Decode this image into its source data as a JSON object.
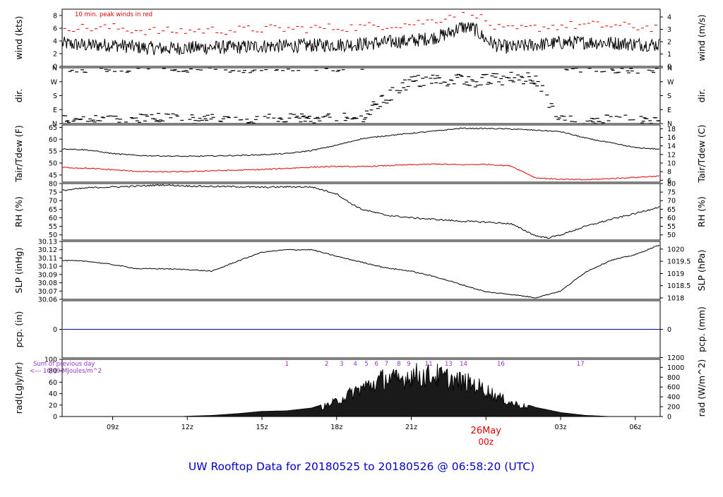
{
  "title": "UW Rooftop Data for 20180525  to  20180526 @ 06:58:20  (UTC)",
  "colors": {
    "title": "#0000cc",
    "date_marker": "#e00000",
    "peak_winds": "#e00000",
    "dewpoint": "#e00000",
    "precip_line": "#0000cc",
    "solar_annotation": "#9933cc",
    "trace": "#000000"
  },
  "time_axis": {
    "start_hour": 6.97,
    "end_hour": 31.0,
    "ticks": [
      {
        "hour": 9,
        "label": "09z"
      },
      {
        "hour": 12,
        "label": "12z"
      },
      {
        "hour": 15,
        "label": "15z"
      },
      {
        "hour": 18,
        "label": "18z"
      },
      {
        "hour": 21,
        "label": "21z"
      },
      {
        "hour": 27,
        "label": "03z"
      },
      {
        "hour": 30,
        "label": "06z"
      }
    ],
    "date_marker": {
      "hour": 24,
      "label_top": "26May",
      "label_bottom": "00z"
    }
  },
  "panels": {
    "wind": {
      "ylabel": "wind (kts)",
      "ylabel_right": "wind (m/s)",
      "ylim": [
        0,
        9
      ],
      "left_ticks": [
        {
          "v": 0,
          "l": "0"
        },
        {
          "v": 2,
          "l": "2"
        },
        {
          "v": 4,
          "l": "4"
        },
        {
          "v": 6,
          "l": "6"
        },
        {
          "v": 8,
          "l": "8"
        }
      ],
      "right_ticks": [
        {
          "v": 0,
          "l": "0"
        },
        {
          "v": 1.944,
          "l": "1"
        },
        {
          "v": 3.888,
          "l": "2"
        },
        {
          "v": 5.832,
          "l": "3"
        },
        {
          "v": 7.776,
          "l": "4"
        }
      ],
      "annotation": "10 min. peak winds in red"
    },
    "dir": {
      "ylabel": "dir.",
      "ylabel_right": "dir.",
      "ylim": [
        0,
        360
      ],
      "left_ticks": [
        {
          "v": 0,
          "l": "N"
        },
        {
          "v": 90,
          "l": "E"
        },
        {
          "v": 180,
          "l": "S"
        },
        {
          "v": 270,
          "l": "W"
        },
        {
          "v": 360,
          "l": "N"
        }
      ],
      "right_ticks": [
        {
          "v": 0,
          "l": "N"
        },
        {
          "v": 90,
          "l": "E"
        },
        {
          "v": 180,
          "l": "S"
        },
        {
          "v": 270,
          "l": "W"
        },
        {
          "v": 360,
          "l": "N"
        }
      ]
    },
    "temp": {
      "ylabel": "Tair/Tdew (F)",
      "ylabel_right": "Tair/Tdew (C)",
      "ylim": [
        42,
        66
      ],
      "left_ticks": [
        {
          "v": 45,
          "l": "45"
        },
        {
          "v": 50,
          "l": "50"
        },
        {
          "v": 55,
          "l": "55"
        },
        {
          "v": 60,
          "l": "60"
        },
        {
          "v": 65,
          "l": "65"
        }
      ],
      "right_ticks": [
        {
          "v": 42.8,
          "l": "6"
        },
        {
          "v": 46.4,
          "l": "8"
        },
        {
          "v": 50,
          "l": "10"
        },
        {
          "v": 53.6,
          "l": "12"
        },
        {
          "v": 57.2,
          "l": "14"
        },
        {
          "v": 60.8,
          "l": "16"
        },
        {
          "v": 64.4,
          "l": "18"
        }
      ]
    },
    "rh": {
      "ylabel": "RH (%)",
      "ylabel_right": "RH (%)",
      "ylim": [
        47,
        80
      ],
      "left_ticks": [
        {
          "v": 50,
          "l": "50"
        },
        {
          "v": 55,
          "l": "55"
        },
        {
          "v": 60,
          "l": "60"
        },
        {
          "v": 65,
          "l": "65"
        },
        {
          "v": 70,
          "l": "70"
        },
        {
          "v": 75,
          "l": "75"
        },
        {
          "v": 80,
          "l": "80"
        }
      ],
      "right_ticks": [
        {
          "v": 50,
          "l": "50"
        },
        {
          "v": 55,
          "l": "55"
        },
        {
          "v": 60,
          "l": "60"
        },
        {
          "v": 65,
          "l": "65"
        },
        {
          "v": 70,
          "l": "70"
        },
        {
          "v": 75,
          "l": "75"
        },
        {
          "v": 80,
          "l": "80"
        }
      ]
    },
    "slp": {
      "ylabel": "SLP (inHg)",
      "ylabel_right": "SLP (hPa)",
      "ylim": [
        30.06,
        30.13
      ],
      "left_ticks": [
        {
          "v": 30.06,
          "l": "30.06"
        },
        {
          "v": 30.07,
          "l": "30.07"
        },
        {
          "v": 30.08,
          "l": "30.08"
        },
        {
          "v": 30.09,
          "l": "30.09"
        },
        {
          "v": 30.1,
          "l": "30.10"
        },
        {
          "v": 30.11,
          "l": "30.11"
        },
        {
          "v": 30.12,
          "l": "30.12"
        },
        {
          "v": 30.13,
          "l": "30.13"
        }
      ],
      "right_ticks": [
        {
          "v": 30.0617,
          "l": "1018"
        },
        {
          "v": 30.0765,
          "l": "1018.5"
        },
        {
          "v": 30.0912,
          "l": "1019"
        },
        {
          "v": 30.106,
          "l": "1019.5"
        },
        {
          "v": 30.1208,
          "l": "1020"
        }
      ]
    },
    "pcp": {
      "ylabel": "pcp. (in)",
      "ylabel_right": "pcp. (mm)",
      "ylim": [
        -1,
        1
      ],
      "left_ticks": [
        {
          "v": 0,
          "l": "0"
        }
      ],
      "right_ticks": [
        {
          "v": 0,
          "l": "0"
        }
      ]
    },
    "rad": {
      "ylabel": "rad(Lgly/hr)",
      "ylabel_right": "rad (W/m^2)",
      "ylim": [
        0,
        100
      ],
      "left_ticks": [
        {
          "v": 0,
          "l": "0"
        },
        {
          "v": 20,
          "l": "20"
        },
        {
          "v": 40,
          "l": "40"
        },
        {
          "v": 60,
          "l": "60"
        },
        {
          "v": 80,
          "l": "80"
        },
        {
          "v": 100,
          "l": "100"
        }
      ],
      "right_ticks": [
        {
          "v": 0,
          "l": "0"
        },
        {
          "v": 17.2,
          "l": "200"
        },
        {
          "v": 34.4,
          "l": "400"
        },
        {
          "v": 51.6,
          "l": "600"
        },
        {
          "v": 68.8,
          "l": "800"
        },
        {
          "v": 86.0,
          "l": "1000"
        },
        {
          "v": 103.2,
          "l": "1200"
        }
      ],
      "annotation_line1": "Sum of previous day",
      "annotation_line2": "<--- 16.09 MJoules/m^2"
    }
  },
  "chart_data": [
    {
      "type": "line",
      "title": "",
      "ylabel": "wind (kts)",
      "ylim": [
        0,
        9
      ],
      "series": [
        {
          "name": "",
          "x": [
            7.0,
            8.0,
            9.0,
            10.0,
            11.0,
            12.0,
            13.0,
            14.0,
            15.0,
            16.0,
            17.0,
            18.0,
            19.0,
            20.0,
            21.0,
            21.5,
            22.0,
            22.5,
            23.0,
            23.5,
            24.0,
            24.5,
            25.0,
            26.0,
            27.0,
            28.0,
            29.0,
            30.0,
            31.0
          ],
          "y": [
            3.6,
            3.3,
            3.4,
            3.0,
            2.8,
            2.9,
            3.0,
            3.0,
            3.2,
            3.2,
            3.3,
            3.4,
            3.5,
            3.8,
            4.0,
            4.3,
            4.6,
            5.2,
            6.2,
            6.0,
            4.2,
            3.2,
            3.0,
            3.4,
            3.7,
            3.8,
            3.7,
            3.5,
            3.4
          ]
        }
      ]
    },
    {
      "type": "scatter",
      "title": "",
      "ylabel": "dir.",
      "ylim": [
        0,
        360
      ],
      "series": [
        {
          "name": "",
          "x": [
            7.0,
            8.0,
            9.0,
            10.0,
            11.0,
            12.0,
            13.0,
            14.0,
            15.0,
            16.0,
            17.0,
            18.0,
            19.0,
            19.5,
            20.0,
            20.5,
            21.0,
            21.5,
            22.0,
            23.0,
            24.0,
            25.0,
            26.0,
            27.0,
            28.0,
            29.0,
            30.0,
            31.0
          ],
          "y": [
            10,
            15,
            10,
            20,
            25,
            15,
            20,
            10,
            15,
            20,
            15,
            20,
            30,
            100,
            160,
            230,
            265,
            275,
            280,
            285,
            275,
            290,
            300,
            20,
            15,
            10,
            10,
            15
          ]
        }
      ]
    },
    {
      "type": "line",
      "title": "",
      "ylabel": "Tair/Tdew (F)",
      "ylim": [
        42,
        66
      ],
      "series": [
        {
          "name": "",
          "x": [
            7,
            8,
            9,
            10,
            11,
            12,
            13,
            14,
            15,
            16,
            17,
            18,
            19,
            20,
            21,
            22,
            23,
            24,
            25,
            26,
            27,
            28,
            29,
            30,
            31
          ],
          "y": [
            56,
            55.5,
            54,
            53.2,
            53,
            52.8,
            53,
            53.2,
            53.5,
            54,
            55.3,
            57.5,
            60.2,
            61.5,
            62.5,
            63.5,
            64.6,
            64.5,
            64.3,
            63.8,
            63.2,
            60.5,
            58.5,
            56.5,
            55.8
          ]
        },
        {
          "name": "",
          "x": [
            7,
            8,
            9,
            10,
            11,
            12,
            13,
            14,
            15,
            16,
            17,
            18,
            19,
            20,
            21,
            22,
            23,
            24,
            25,
            26,
            27,
            28,
            29,
            30,
            31
          ],
          "y": [
            48.2,
            47.8,
            47.2,
            46.5,
            46.3,
            46.4,
            46.8,
            47.0,
            47.3,
            47.8,
            48.3,
            48.6,
            48.5,
            48.9,
            49.3,
            49.6,
            49.3,
            49.5,
            48.8,
            43.8,
            43.2,
            43.0,
            43.5,
            44.0,
            44.6
          ]
        }
      ]
    },
    {
      "type": "line",
      "title": "",
      "ylabel": "RH (%)",
      "ylim": [
        47,
        80
      ],
      "series": [
        {
          "name": "",
          "x": [
            7,
            8,
            9,
            10,
            11,
            12,
            13,
            14,
            15,
            16,
            17,
            18,
            18.5,
            19,
            20,
            21,
            22,
            23,
            24,
            25,
            26,
            26.5,
            27,
            28,
            29,
            30,
            31
          ],
          "y": [
            76,
            77.5,
            78,
            78.5,
            79.2,
            78.6,
            78.3,
            78.2,
            77.8,
            78.1,
            78,
            74,
            69,
            65,
            61.5,
            60,
            59,
            58,
            57.5,
            56.5,
            49.5,
            48.3,
            50,
            55,
            59,
            62.5,
            66.5
          ]
        }
      ]
    },
    {
      "type": "line",
      "title": "",
      "ylabel": "SLP (inHg)",
      "ylim": [
        30.06,
        30.13
      ],
      "series": [
        {
          "name": "",
          "x": [
            7,
            8,
            9,
            10,
            11,
            12,
            13,
            14,
            15,
            16,
            17,
            18,
            19,
            20,
            21,
            22,
            23,
            24,
            25,
            26,
            27,
            28,
            29,
            30,
            31
          ],
          "y": [
            30.107,
            30.106,
            30.102,
            30.097,
            30.097,
            30.096,
            30.094,
            30.106,
            30.117,
            30.12,
            30.12,
            30.112,
            30.105,
            30.098,
            30.094,
            30.087,
            30.078,
            30.069,
            30.066,
            30.062,
            30.07,
            30.093,
            30.107,
            30.114,
            30.126
          ]
        }
      ]
    },
    {
      "type": "line",
      "title": "",
      "ylabel": "pcp. (in)",
      "ylim": [
        -1,
        1
      ],
      "series": [
        {
          "name": "",
          "x": [
            7,
            31
          ],
          "y": [
            0,
            0
          ]
        }
      ]
    },
    {
      "type": "area",
      "title": "",
      "ylabel": "rad(Lgly/hr)",
      "ylim": [
        0,
        100
      ],
      "series": [
        {
          "name": "",
          "x": [
            7,
            10,
            11.8,
            12.0,
            13,
            14,
            15,
            16,
            17,
            17.5,
            18,
            18.5,
            19,
            19.5,
            20,
            20.5,
            21,
            21.5,
            22,
            22.5,
            23,
            23.5,
            24,
            24.5,
            25,
            26,
            27,
            28,
            29
          ],
          "y": [
            0,
            0,
            0,
            0.5,
            2,
            5,
            9,
            10,
            15,
            22,
            33,
            48,
            62,
            72,
            85,
            78,
            92,
            88,
            90,
            82,
            76,
            70,
            58,
            42,
            30,
            16,
            7,
            2,
            0
          ]
        }
      ],
      "markers": [
        {
          "x": 16.0,
          "label": "1"
        },
        {
          "x": 17.6,
          "label": "2"
        },
        {
          "x": 18.2,
          "label": "3"
        },
        {
          "x": 18.75,
          "label": "4"
        },
        {
          "x": 19.2,
          "label": "5"
        },
        {
          "x": 19.6,
          "label": "6"
        },
        {
          "x": 20.0,
          "label": "7"
        },
        {
          "x": 20.5,
          "label": "8"
        },
        {
          "x": 20.9,
          "label": "9"
        },
        {
          "x": 21.7,
          "label": "11"
        },
        {
          "x": 22.5,
          "label": "13"
        },
        {
          "x": 23.1,
          "label": "14"
        },
        {
          "x": 24.6,
          "label": "16"
        },
        {
          "x": 27.8,
          "label": "17"
        }
      ]
    }
  ]
}
